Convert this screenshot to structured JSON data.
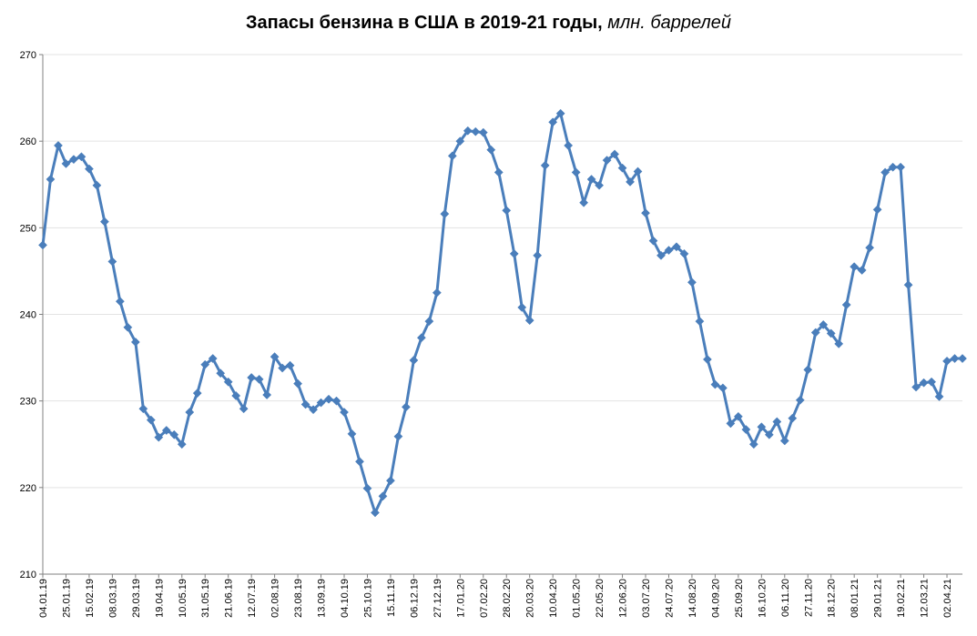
{
  "chart_data": {
    "type": "line",
    "title": "Запасы бензина в США в 2019-21 годы,",
    "title_unit": "млн. баррелей",
    "xlabel": "",
    "ylabel": "",
    "ylim": [
      210,
      270
    ],
    "yticks": [
      210,
      220,
      230,
      240,
      250,
      260,
      270
    ],
    "grid": "horizontal",
    "color": "#4a7ebb",
    "marker": "diamond",
    "x_tick_labels": [
      "04.01.19",
      "25.01.19",
      "15.02.19",
      "08.03.19",
      "29.03.19",
      "19.04.19",
      "10.05.19",
      "31.05.19",
      "21.06.19",
      "12.07.19",
      "02.08.19",
      "23.08.19",
      "13.09.19",
      "04.10.19",
      "25.10.19",
      "15.11.19",
      "06.12.19",
      "27.12.19",
      "17.01.20",
      "07.02.20",
      "28.02.20",
      "20.03.20",
      "10.04.20",
      "01.05.20",
      "22.05.20",
      "12.06.20",
      "03.07.20",
      "24.07.20",
      "14.08.20",
      "04.09.20",
      "25.09.20",
      "16.10.20",
      "06.11.20",
      "27.11.20",
      "18.12.20",
      "08.01.21",
      "29.01.21",
      "19.02.21",
      "12.03.21",
      "02.04.21"
    ],
    "series": [
      {
        "values": [
          248.0,
          255.6,
          259.5,
          257.4,
          257.9,
          258.2,
          256.8,
          254.9,
          250.7,
          246.1,
          241.5,
          238.5,
          236.8,
          229.1,
          227.8,
          225.8,
          226.6,
          226.1,
          225.0,
          228.7,
          230.9,
          234.2,
          234.9,
          233.2,
          232.2,
          230.6,
          229.1,
          232.7,
          232.5,
          230.7,
          235.1,
          233.8,
          234.1,
          232.0,
          229.6,
          229.0,
          229.8,
          230.2,
          230.0,
          228.7,
          226.2,
          223.0,
          219.9,
          217.1,
          219.0,
          220.8,
          225.9,
          229.3,
          234.7,
          237.3,
          239.2,
          242.5,
          251.6,
          258.3,
          260.0,
          261.2,
          261.1,
          261.0,
          259.0,
          256.4,
          252.0,
          247.0,
          240.8,
          239.3,
          246.8,
          257.2,
          262.2,
          263.2,
          259.5,
          256.4,
          252.9,
          255.6,
          254.9,
          257.8,
          258.5,
          256.9,
          255.3,
          256.5,
          251.7,
          248.5,
          246.8,
          247.4,
          247.8,
          247.0,
          243.7,
          239.2,
          234.8,
          231.9,
          231.5,
          227.4,
          228.2,
          226.7,
          225.0,
          227.0,
          226.1,
          227.6,
          225.4,
          228.0,
          230.1,
          233.6,
          237.9,
          238.8,
          237.8,
          236.6,
          241.1,
          245.5,
          245.1,
          247.7,
          252.1,
          256.4,
          257.0,
          257.0,
          243.4,
          231.6,
          232.1,
          232.2,
          230.5,
          234.6,
          234.9,
          234.9
        ]
      }
    ]
  }
}
